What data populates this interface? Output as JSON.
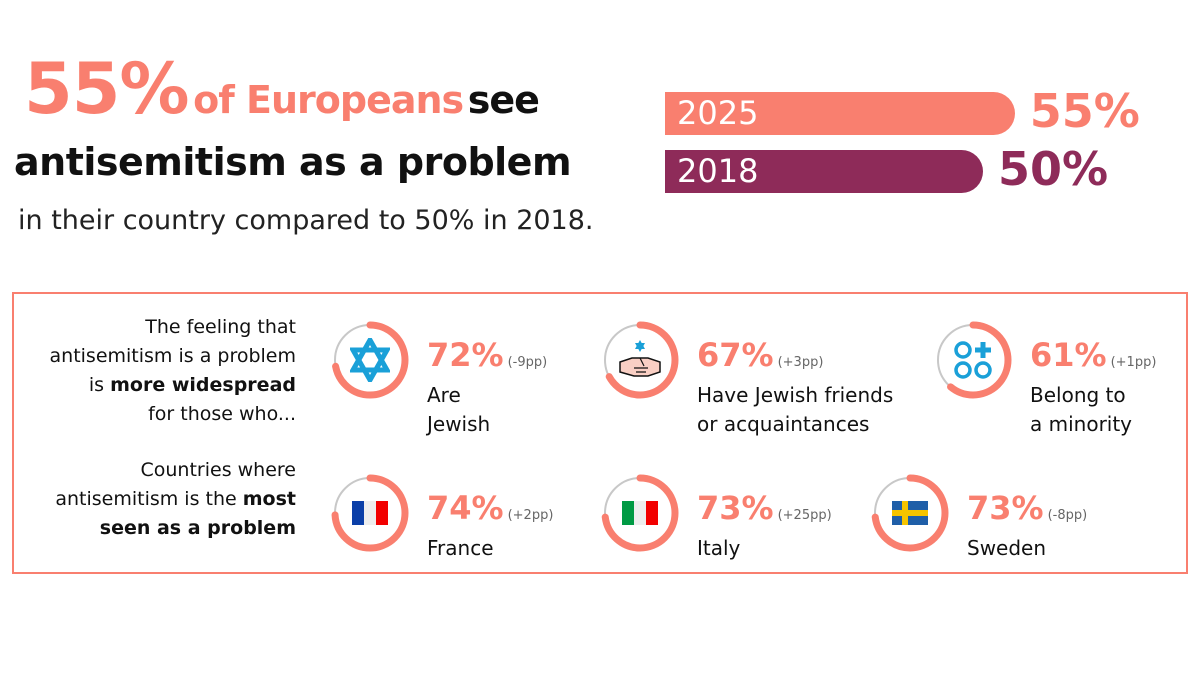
{
  "headline": {
    "pct": "55%",
    "of": "of Europeans",
    "see": "see",
    "line2": "antisemitism as a problem",
    "line3": "in their country compared to 50% in 2018."
  },
  "chart_data": {
    "type": "bar",
    "categories": [
      "2025",
      "2018"
    ],
    "values": [
      55,
      50
    ],
    "labels": [
      "55%",
      "50%"
    ],
    "colors": [
      "#f97f6f",
      "#8e2b59"
    ],
    "xlim": [
      0,
      100
    ]
  },
  "groups": {
    "widespread": {
      "lines": [
        "The feeling that",
        "antisemitism is a problem",
        "is ",
        "more widespread",
        "for those who..."
      ]
    },
    "countries": {
      "lines": [
        "Countries where",
        "antisemitism is the ",
        "most",
        "seen as a problem"
      ]
    }
  },
  "items": [
    {
      "pct": "72%",
      "value": 72,
      "change": "(-9pp)",
      "label1": "Are",
      "label2": "Jewish",
      "icon": "star-of-david-icon"
    },
    {
      "pct": "67%",
      "value": 67,
      "change": "(+3pp)",
      "label1": "Have Jewish friends",
      "label2": "or acquaintances",
      "icon": "handshake-icon"
    },
    {
      "pct": "61%",
      "value": 61,
      "change": "(+1pp)",
      "label1": "Belong to",
      "label2": "a minority",
      "icon": "minority-icon"
    },
    {
      "pct": "74%",
      "value": 74,
      "change": "(+2pp)",
      "label1": "France",
      "label2": "",
      "icon": "france-flag-icon"
    },
    {
      "pct": "73%",
      "value": 73,
      "change": "(+25pp)",
      "label1": "Italy",
      "label2": "",
      "icon": "italy-flag-icon"
    },
    {
      "pct": "73%",
      "value": 73,
      "change": "(-8pp)",
      "label1": "Sweden",
      "label2": "",
      "icon": "sweden-flag-icon"
    }
  ],
  "colors": {
    "accent": "#f97f6f",
    "purple": "#8e2b59",
    "ring_track": "#c8c8c8",
    "icon_blue": "#1aa0d8"
  }
}
